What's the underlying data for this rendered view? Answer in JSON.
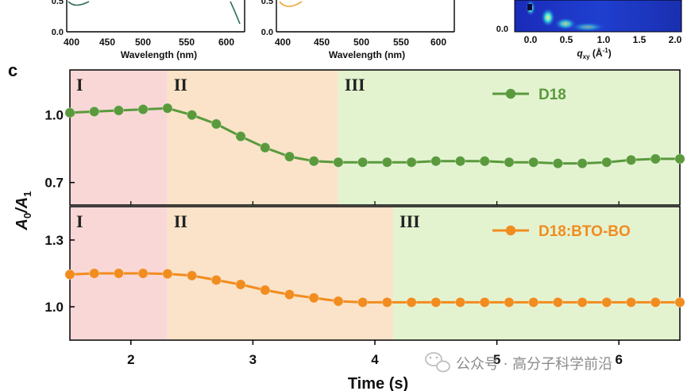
{
  "panel_label": "c",
  "top_panels": [
    {
      "xlabel": "Wavelength (nm)",
      "xticks": [
        "400",
        "450",
        "500",
        "550",
        "600"
      ],
      "yticks": [
        "0.0",
        "0.5"
      ],
      "line_color": "#2e6e5e"
    },
    {
      "xlabel": "Wavelength (nm)",
      "xticks": [
        "400",
        "450",
        "500",
        "550",
        "600"
      ],
      "yticks": [
        "0.0",
        "0.5"
      ],
      "line_color": "#f0a030"
    },
    {
      "xlabel": "q",
      "xlabel_sub": "xy",
      "xlabel_unit": " (Å",
      "xlabel_sup": "-1",
      "xlabel_end": ")",
      "xticks": [
        "0.0",
        "0.5",
        "1.0",
        "1.5",
        "2.0"
      ],
      "yticks": [
        "0.0"
      ]
    }
  ],
  "chart_data": {
    "type": "line",
    "xlabel": "Time (s)",
    "ylabel": "A0/A1",
    "ylabel_main": "A",
    "ylabel_sub0": "0",
    "ylabel_slash": "/A",
    "ylabel_sub1": "1",
    "xlim": [
      1.5,
      6.5
    ],
    "xticks": [
      2,
      3,
      4,
      5,
      6
    ],
    "x": [
      1.5,
      1.7,
      1.9,
      2.1,
      2.3,
      2.5,
      2.7,
      2.9,
      3.1,
      3.3,
      3.5,
      3.7,
      3.9,
      4.1,
      4.3,
      4.5,
      4.7,
      4.9,
      5.1,
      5.3,
      5.5,
      5.7,
      5.9,
      6.1,
      6.3,
      6.5
    ],
    "subplots": [
      {
        "series_name": "D18",
        "color": "#5a9a3c",
        "ylim": [
          0.6,
          1.2
        ],
        "yticks": [
          "1.0",
          "0.7"
        ],
        "ytick_values": [
          1.0,
          0.7
        ],
        "values": [
          1.01,
          1.015,
          1.02,
          1.025,
          1.03,
          1.0,
          0.96,
          0.905,
          0.855,
          0.815,
          0.795,
          0.79,
          0.79,
          0.79,
          0.79,
          0.795,
          0.795,
          0.795,
          0.79,
          0.79,
          0.785,
          0.785,
          0.79,
          0.8,
          0.805,
          0.805
        ],
        "phases": [
          {
            "label": "I",
            "x_start": 1.5,
            "x_end": 2.3,
            "color": "#fad7d7"
          },
          {
            "label": "II",
            "x_start": 2.3,
            "x_end": 3.7,
            "color": "#fae3c8"
          },
          {
            "label": "III",
            "x_start": 3.7,
            "x_end": 6.5,
            "color": "#e3f3d0"
          }
        ]
      },
      {
        "series_name": "D18:BTO-BO",
        "color": "#f18c1f",
        "ylim": [
          0.85,
          1.45
        ],
        "yticks": [
          "1.3",
          "1.0"
        ],
        "ytick_values": [
          1.3,
          1.0
        ],
        "values": [
          1.145,
          1.15,
          1.15,
          1.15,
          1.148,
          1.14,
          1.12,
          1.1,
          1.075,
          1.055,
          1.04,
          1.025,
          1.02,
          1.02,
          1.02,
          1.02,
          1.02,
          1.02,
          1.02,
          1.02,
          1.02,
          1.02,
          1.02,
          1.02,
          1.02,
          1.02
        ],
        "phases": [
          {
            "label": "I",
            "x_start": 1.5,
            "x_end": 2.3,
            "color": "#fad7d7"
          },
          {
            "label": "II",
            "x_start": 2.3,
            "x_end": 4.15,
            "color": "#fae3c8"
          },
          {
            "label": "III",
            "x_start": 4.15,
            "x_end": 6.5,
            "color": "#e3f3d0"
          }
        ]
      }
    ]
  },
  "watermark": {
    "text": "公众号 · 高分子科学前沿"
  }
}
